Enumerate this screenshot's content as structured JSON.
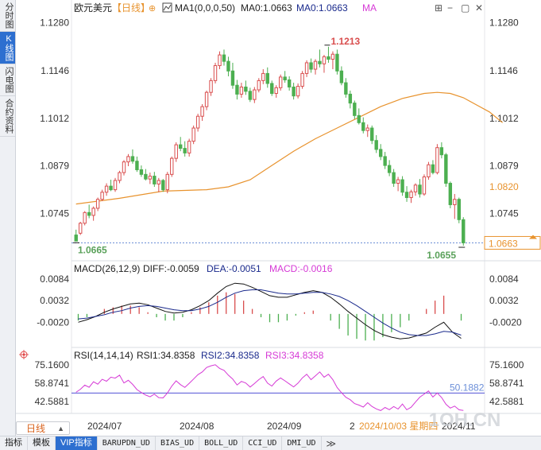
{
  "sidebar": {
    "tabs": [
      {
        "label": "分时图",
        "active": false
      },
      {
        "label": "K线图",
        "active": true
      },
      {
        "label": "闪电图",
        "active": false
      },
      {
        "label": "合约资料",
        "active": false
      }
    ]
  },
  "header": {
    "symbol": "欧元美元",
    "period_tag": "【日线】",
    "settings_glyph": "⊕",
    "ma_label": "MA1(0,0,0,50)",
    "ma0_label": "MA0:1.0663",
    "ma0_value_label": "MA0:1.0663",
    "ma_text": "MA",
    "window_controls": [
      "⊞",
      "−",
      "▢",
      "✕"
    ]
  },
  "bottom_tabs": {
    "items": [
      "指标",
      "模板",
      "VIP指标",
      "BARUPDN_UD",
      "BIAS_UD",
      "BOLL_UD",
      "CCI_UD",
      "DMI_UD",
      "≫"
    ]
  },
  "period_button": {
    "label": "日线",
    "chevron": "▲"
  },
  "colors": {
    "up": "#d94e4e",
    "down": "#4caf50",
    "ma": "#e8932e",
    "macd_diff": "#111111",
    "macd_dea": "#1a2a8c",
    "rsi": "#d63ad6",
    "highlight": "#e8932e",
    "current": "#e8932e",
    "low_label": "#5aa15a",
    "high_label": "#d94e4e"
  },
  "chart_data": [
    {
      "type": "candlestick",
      "title": "欧元美元【日线】",
      "y_ticks": [
        "1.1280",
        "1.1146",
        "1.1012",
        "1.0879",
        "1.0745"
      ],
      "ylim": [
        1.0635,
        1.1295
      ],
      "x_ticks": [
        "2024/07",
        "2024/08",
        "2024/09",
        "2"
      ],
      "annotations": {
        "period_high": "1.1213",
        "period_low_left": "1.0665",
        "period_low_right": "1.0655",
        "price_tag": "1.0820",
        "current_price": "1.0663",
        "crosshair_date": "2024/10/03 星期四",
        "last_date": "2024/11"
      },
      "candles": [
        [
          1.0685,
          1.07,
          1.067,
          1.0668
        ],
        [
          1.069,
          1.0722,
          1.0685,
          1.0718
        ],
        [
          1.0718,
          1.0752,
          1.0712,
          1.0748
        ],
        [
          1.0748,
          1.077,
          1.0732,
          1.074
        ],
        [
          1.074,
          1.0765,
          1.0725,
          1.076
        ],
        [
          1.076,
          1.079,
          1.0752,
          1.0785
        ],
        [
          1.0785,
          1.0812,
          1.078,
          1.0805
        ],
        [
          1.0805,
          1.083,
          1.0795,
          1.0822
        ],
        [
          1.0822,
          1.084,
          1.0808,
          1.0812
        ],
        [
          1.0812,
          1.0845,
          1.0806,
          1.0838
        ],
        [
          1.0838,
          1.0865,
          1.083,
          1.086
        ],
        [
          1.086,
          1.0895,
          1.0852,
          1.089
        ],
        [
          1.089,
          1.0912,
          1.0878,
          1.0905
        ],
        [
          1.0905,
          1.0925,
          1.0885,
          1.0892
        ],
        [
          1.0892,
          1.0905,
          1.0862,
          1.0868
        ],
        [
          1.0868,
          1.088,
          1.0848,
          1.0855
        ],
        [
          1.0855,
          1.087,
          1.0838,
          1.0842
        ],
        [
          1.0842,
          1.086,
          1.0828,
          1.085
        ],
        [
          1.085,
          1.0862,
          1.082,
          1.0828
        ],
        [
          1.0828,
          1.0845,
          1.0805,
          1.0838
        ],
        [
          1.0838,
          1.0842,
          1.0806,
          1.0812
        ],
        [
          1.0812,
          1.0862,
          1.0802,
          1.0855
        ],
        [
          1.0855,
          1.0905,
          1.0848,
          1.09
        ],
        [
          1.09,
          1.0945,
          1.089,
          1.0938
        ],
        [
          1.0938,
          1.096,
          1.092,
          1.0928
        ],
        [
          1.0928,
          1.0948,
          1.0905,
          1.0915
        ],
        [
          1.0915,
          1.0955,
          1.0905,
          1.0948
        ],
        [
          1.0948,
          1.0992,
          1.094,
          1.0985
        ],
        [
          1.0985,
          1.1025,
          1.0975,
          1.1018
        ],
        [
          1.1018,
          1.1052,
          1.1005,
          1.1045
        ],
        [
          1.1045,
          1.109,
          1.1035,
          1.1085
        ],
        [
          1.1085,
          1.1125,
          1.1075,
          1.1118
        ],
        [
          1.1118,
          1.1168,
          1.111,
          1.116
        ],
        [
          1.116,
          1.12,
          1.115,
          1.119
        ],
        [
          1.119,
          1.1205,
          1.116,
          1.1172
        ],
        [
          1.1172,
          1.1185,
          1.113,
          1.1145
        ],
        [
          1.1145,
          1.1168,
          1.1095,
          1.1105
        ],
        [
          1.1105,
          1.112,
          1.1065,
          1.108
        ],
        [
          1.108,
          1.1112,
          1.107,
          1.11
        ],
        [
          1.11,
          1.1118,
          1.1078,
          1.1088
        ],
        [
          1.1088,
          1.1098,
          1.1058,
          1.1065
        ],
        [
          1.1065,
          1.11,
          1.1055,
          1.1092
        ],
        [
          1.1092,
          1.1125,
          1.1085,
          1.1118
        ],
        [
          1.1118,
          1.115,
          1.1108,
          1.1138
        ],
        [
          1.1138,
          1.1155,
          1.1098,
          1.111
        ],
        [
          1.111,
          1.1118,
          1.1075,
          1.1082
        ],
        [
          1.1082,
          1.1105,
          1.107,
          1.1098
        ],
        [
          1.1098,
          1.1135,
          1.109,
          1.1128
        ],
        [
          1.1128,
          1.1145,
          1.1112,
          1.112
        ],
        [
          1.112,
          1.113,
          1.109,
          1.11
        ],
        [
          1.11,
          1.1112,
          1.1065,
          1.1075
        ],
        [
          1.1075,
          1.111,
          1.1068,
          1.1102
        ],
        [
          1.1102,
          1.1145,
          1.1095,
          1.1138
        ],
        [
          1.1138,
          1.1175,
          1.1128,
          1.1168
        ],
        [
          1.1168,
          1.118,
          1.114,
          1.115
        ],
        [
          1.115,
          1.1178,
          1.1135,
          1.1172
        ],
        [
          1.1172,
          1.1205,
          1.1155,
          1.1165
        ],
        [
          1.1165,
          1.119,
          1.114,
          1.1185
        ],
        [
          1.1185,
          1.1213,
          1.1168,
          1.1178
        ],
        [
          1.1178,
          1.12,
          1.115,
          1.1192
        ],
        [
          1.1192,
          1.1205,
          1.1135,
          1.1145
        ],
        [
          1.1145,
          1.1158,
          1.1105,
          1.1112
        ],
        [
          1.1112,
          1.1125,
          1.107,
          1.108
        ],
        [
          1.108,
          1.109,
          1.104,
          1.1055
        ],
        [
          1.1055,
          1.1062,
          1.101,
          1.102
        ],
        [
          1.102,
          1.104,
          1.0995,
          1.1
        ],
        [
          1.1,
          1.1015,
          1.097,
          1.0978
        ],
        [
          1.0978,
          1.0995,
          1.096,
          1.0985
        ],
        [
          1.0985,
          1.0992,
          1.094,
          1.095
        ],
        [
          1.095,
          1.0965,
          1.0915,
          1.0925
        ],
        [
          1.0925,
          1.094,
          1.0895,
          1.0905
        ],
        [
          1.0905,
          1.0918,
          1.087,
          1.088
        ],
        [
          1.088,
          1.0895,
          1.085,
          1.086
        ],
        [
          1.086,
          1.087,
          1.082,
          1.083
        ],
        [
          1.083,
          1.0848,
          1.0808,
          1.084
        ],
        [
          1.084,
          1.085,
          1.0795,
          1.0805
        ],
        [
          1.0805,
          1.0822,
          1.0778,
          1.079
        ],
        [
          1.079,
          1.0812,
          1.0775,
          1.0806
        ],
        [
          1.0806,
          1.083,
          1.0795,
          1.0825
        ],
        [
          1.0825,
          1.0842,
          1.079,
          1.08
        ],
        [
          1.08,
          1.0855,
          1.0795,
          1.0848
        ],
        [
          1.0848,
          1.089,
          1.084,
          1.0882
        ],
        [
          1.0882,
          1.0895,
          1.0855,
          1.086
        ],
        [
          1.086,
          1.094,
          1.0855,
          1.093
        ],
        [
          1.093,
          1.0945,
          1.09,
          1.091
        ],
        [
          1.091,
          1.0915,
          1.082,
          1.083
        ],
        [
          1.083,
          1.0835,
          1.076,
          1.077
        ],
        [
          1.077,
          1.08,
          1.073,
          1.0785
        ],
        [
          1.0785,
          1.079,
          1.0718,
          1.0728
        ],
        [
          1.0728,
          1.0735,
          1.0655,
          1.0663
        ]
      ],
      "ma50": [
        [
          0,
          1.0772
        ],
        [
          10,
          1.0788
        ],
        [
          20,
          1.0808
        ],
        [
          30,
          1.0812
        ],
        [
          35,
          1.082
        ],
        [
          40,
          1.084
        ],
        [
          45,
          1.088
        ],
        [
          50,
          1.092
        ],
        [
          55,
          1.0955
        ],
        [
          60,
          1.0985
        ],
        [
          65,
          1.1015
        ],
        [
          70,
          1.1045
        ],
        [
          75,
          1.1068
        ],
        [
          80,
          1.1082
        ],
        [
          83,
          1.1085
        ],
        [
          86,
          1.1082
        ],
        [
          89,
          1.107
        ],
        [
          92,
          1.105
        ],
        [
          95,
          1.103
        ],
        [
          98,
          1.1
        ]
      ]
    },
    {
      "type": "macd",
      "params": "MACD(26,12,9)",
      "diff_label": "DIFF:-0.0059",
      "dea_label": "DEA:-0.0051",
      "macd_label": "MACD:-0.0016",
      "y_ticks": [
        "0.0084",
        "0.0032",
        "-0.0020"
      ],
      "ylim": [
        -0.0075,
        0.0105
      ],
      "diff": [
        -0.002,
        -0.0014,
        -0.0006,
        0.0004,
        0.0012,
        0.0018,
        0.0024,
        0.0026,
        0.0022,
        0.0014,
        0.0006,
        0.0002,
        0.0004,
        0.001,
        0.002,
        0.0032,
        0.005,
        0.0066,
        0.0074,
        0.0072,
        0.0064,
        0.0054,
        0.0044,
        0.004,
        0.004,
        0.0046,
        0.0052,
        0.0056,
        0.0052,
        0.004,
        0.0024,
        0.0006,
        -0.001,
        -0.0026,
        -0.004,
        -0.005,
        -0.0056,
        -0.006,
        -0.0058,
        -0.0052,
        -0.0046,
        -0.0032,
        -0.002,
        -0.0044,
        -0.0059
      ],
      "dea": [
        -0.0012,
        -0.001,
        -0.0006,
        -0.0002,
        0.0004,
        0.0008,
        0.0014,
        0.0018,
        0.002,
        0.0018,
        0.0014,
        0.001,
        0.0008,
        0.0008,
        0.0012,
        0.0018,
        0.0028,
        0.004,
        0.005,
        0.0056,
        0.0058,
        0.0058,
        0.0054,
        0.005,
        0.0048,
        0.0048,
        0.005,
        0.0052,
        0.0052,
        0.0048,
        0.0042,
        0.0032,
        0.002,
        0.0006,
        -0.0008,
        -0.0022,
        -0.0034,
        -0.0044,
        -0.005,
        -0.0052,
        -0.0052,
        -0.0048,
        -0.0042,
        -0.0044,
        -0.0051
      ]
    },
    {
      "type": "line",
      "params": "RSI(14,14,14)",
      "rsi1_label": "RSI1:34.8358",
      "rsi2_label": "RSI2:34.8358",
      "rsi3_label": "RSI3:34.8358",
      "y_ticks": [
        "75.1600",
        "58.8741",
        "42.5881"
      ],
      "ylim": [
        33.5,
        80.0
      ],
      "reference_label": "50.1882",
      "reference_value": 50.1882,
      "values": [
        50.8,
        53.5,
        57.2,
        55.3,
        60.1,
        58.0,
        62.3,
        60.6,
        64.2,
        63.4,
        66.0,
        59.1,
        61.5,
        57.9,
        53.2,
        50.6,
        48.4,
        46.8,
        49.2,
        46.1,
        45.8,
        50.3,
        56.4,
        61.0,
        57.6,
        55.1,
        58.8,
        62.5,
        66.4,
        68.9,
        72.8,
        74.3,
        75.2,
        72.0,
        70.3,
        66.0,
        62.6,
        57.3,
        60.5,
        59.0,
        55.5,
        58.6,
        62.0,
        64.8,
        58.9,
        56.3,
        60.8,
        63.5,
        61.0,
        58.3,
        55.6,
        58.9,
        63.6,
        66.8,
        62.0,
        65.4,
        68.9,
        64.2,
        66.8,
        62.1,
        55.0,
        50.5,
        46.4,
        44.3,
        40.8,
        39.5,
        37.7,
        41.6,
        38.3,
        36.1,
        34.6,
        37.4,
        35.4,
        38.2,
        36.0,
        40.4,
        35.3,
        37.6,
        42.2,
        46.5,
        49.3,
        52.0,
        46.6,
        50.2,
        46.2,
        40.2,
        36.8,
        38.6,
        35.3,
        34.8
      ]
    }
  ],
  "watermark": "1OH.CN"
}
